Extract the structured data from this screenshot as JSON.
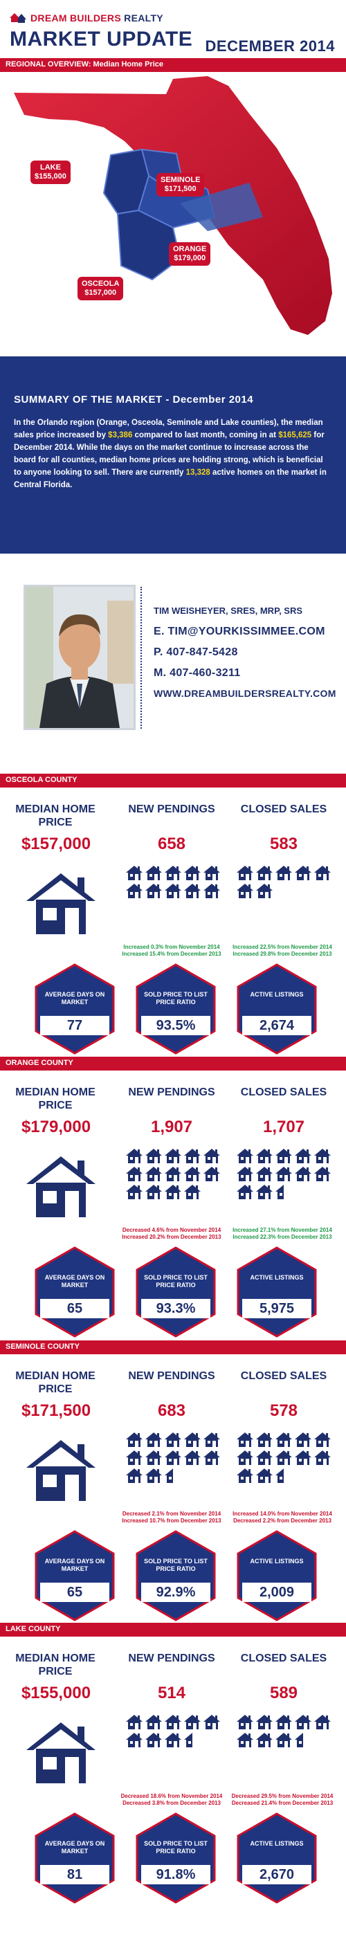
{
  "header": {
    "brand_a": "DREAM BUILDERS",
    "brand_b": " REALTY",
    "title": "MARKET UPDATE",
    "month": "DECEMBER 2014"
  },
  "regional_bar": "REGIONAL OVERVIEW: Median Home Price",
  "map": {
    "lake": {
      "name": "LAKE",
      "price": "$155,000"
    },
    "seminole": {
      "name": "SEMINOLE",
      "price": "$171,500"
    },
    "orange": {
      "name": "ORANGE",
      "price": "$179,000"
    },
    "osceola": {
      "name": "OSCEOLA",
      "price": "$157,000"
    },
    "colors": {
      "red": "#c8102e",
      "blue": "#1f3580",
      "lightblue": "#3d5fb0"
    }
  },
  "summary": {
    "title": "SUMMARY OF THE MARKET - December 2014",
    "t1": "In the Orlando region (Orange, Osceola, Seminole and Lake counties), the median sales price increased by ",
    "h1": "$3,386",
    "t2": " compared to last month, coming in at ",
    "h2": "$165,625",
    "t3": " for December 2014. While the days on the market continue to increase across the board for all counties, median home prices are holding strong, which is beneficial to anyone looking to sell. There are currently ",
    "h3": "13,328",
    "t4": " active homes on the market in Central Florida."
  },
  "agent": {
    "name": "TIM WEISHEYER, SRES, MRP, SRS",
    "email": "E. TIM@YOURKISSIMMEE.COM",
    "phone": "P. 407-847-5428",
    "mobile": "M. 407-460-3211",
    "web": "WWW.DREAMBUILDERSREALTY.COM"
  },
  "labels": {
    "median": "MEDIAN HOME PRICE",
    "pendings": "NEW PENDINGS",
    "closed": "CLOSED SALES",
    "dom": "AVERAGE DAYS ON MARKET",
    "ratio": "SOLD PRICE TO LIST PRICE RATIO",
    "listings": "ACTIVE LISTINGS"
  },
  "counties": [
    {
      "bar": "OSCEOLA COUNTY",
      "median": "$157,000",
      "pendings": "658",
      "closed": "583",
      "pend_icons": 10,
      "closed_icons": 7,
      "pend_change": [
        "Increased 0.3% from November 2014",
        "Increased 15.4% from December 2013"
      ],
      "pend_color": "green",
      "closed_change": [
        "Increased 22.5% from November 2014",
        "Increased 29.8% from December 2013"
      ],
      "closed_color": "green",
      "dom": "77",
      "ratio": "93.5%",
      "listings": "2,674"
    },
    {
      "bar": "ORANGE COUNTY",
      "median": "$179,000",
      "pendings": "1,907",
      "closed": "1,707",
      "pend_icons": 14,
      "closed_icons": 13,
      "pend_change": [
        "Decreased 4.6% from November 2014",
        "Increased 20.2% from December 2013"
      ],
      "pend_color": "red",
      "closed_change": [
        "Increased 27.1% from November 2014",
        "Increased 22.3% from December 2013"
      ],
      "closed_color": "green",
      "dom": "65",
      "ratio": "93.3%",
      "listings": "5,975"
    },
    {
      "bar": "SEMINOLE COUNTY",
      "median": "$171,500",
      "pendings": "683",
      "closed": "578",
      "pend_icons": 13,
      "closed_icons": 13,
      "pend_change": [
        "Decreased 2.1% from November 2014",
        "Increased 10.7% from December 2013"
      ],
      "pend_color": "red",
      "closed_change": [
        "Increased 14.0% from November 2014",
        "Decreased 2.2% from December 2013"
      ],
      "closed_color": "red",
      "dom": "65",
      "ratio": "92.9%",
      "listings": "2,009"
    },
    {
      "bar": "LAKE COUNTY",
      "median": "$155,000",
      "pendings": "514",
      "closed": "589",
      "pend_icons": 9,
      "closed_icons": 9,
      "pend_change": [
        "Decreased 18.6% from November 2014",
        "Decreased 3.8% from December 2013"
      ],
      "pend_color": "red",
      "closed_change": [
        "Decreased 29.5% from November 2014",
        "Decreased 21.4% from December 2013"
      ],
      "closed_color": "red",
      "dom": "81",
      "ratio": "91.8%",
      "listings": "2,670"
    }
  ]
}
